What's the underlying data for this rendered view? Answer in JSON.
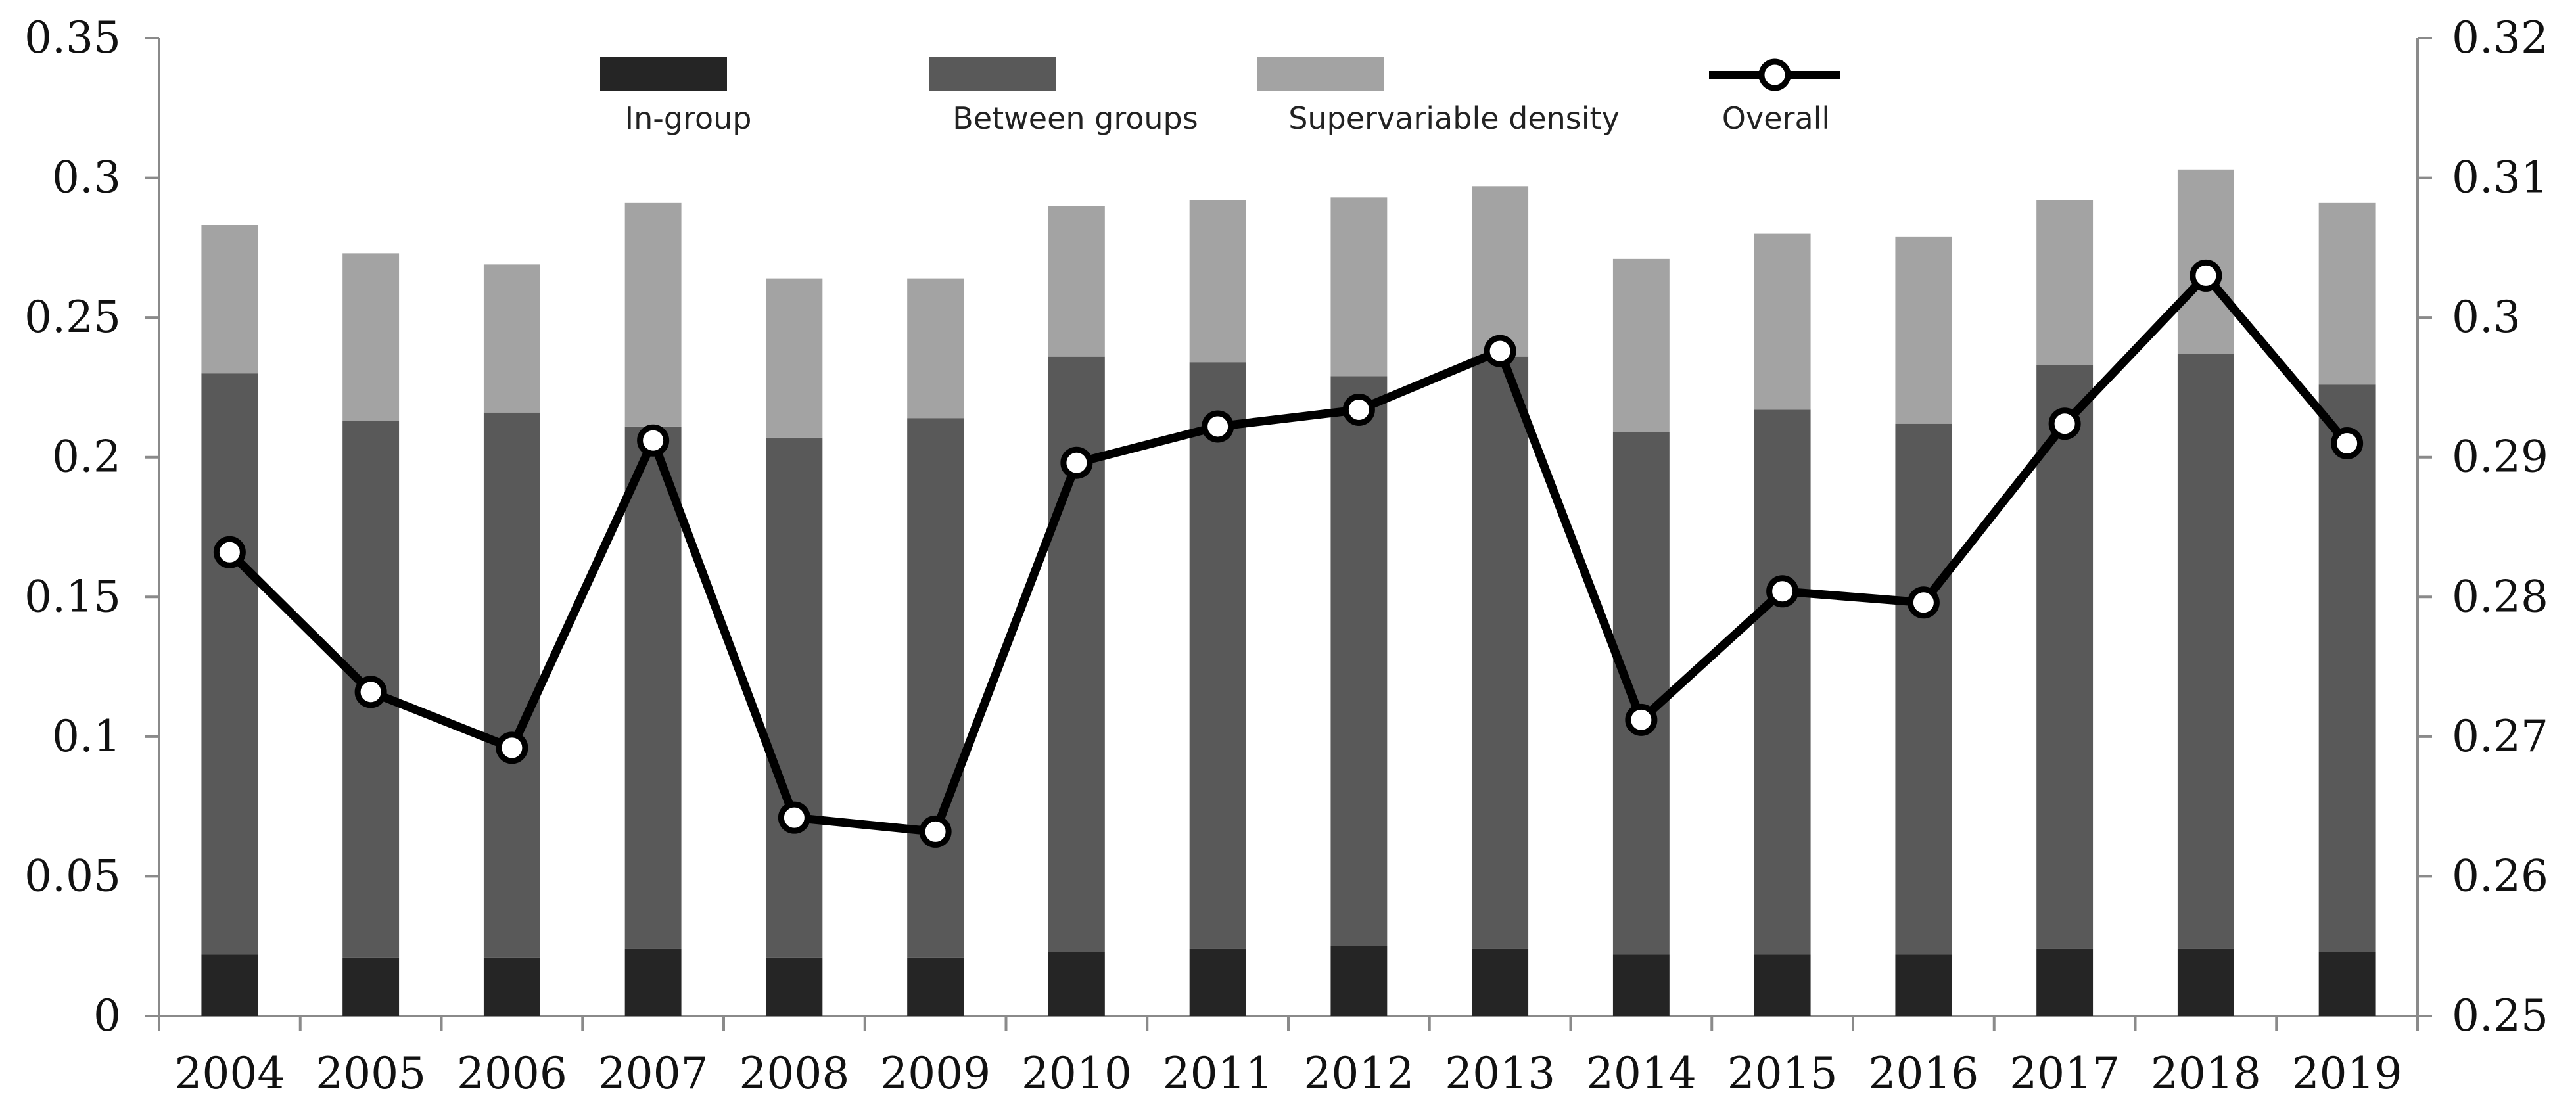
{
  "chart_data": {
    "type": "bar",
    "stacked": true,
    "title": "",
    "xlabel": "",
    "ylabel": "",
    "ylabel_right": "",
    "categories": [
      "2004",
      "2005",
      "2006",
      "2007",
      "2008",
      "2009",
      "2010",
      "2011",
      "2012",
      "2013",
      "2014",
      "2015",
      "2016",
      "2017",
      "2018",
      "2019"
    ],
    "series": [
      {
        "name": "In-group",
        "axis": "left",
        "kind": "bar",
        "color": "#252525",
        "values": [
          0.022,
          0.021,
          0.021,
          0.024,
          0.021,
          0.021,
          0.023,
          0.024,
          0.025,
          0.024,
          0.022,
          0.022,
          0.022,
          0.024,
          0.024,
          0.023
        ]
      },
      {
        "name": "Between groups",
        "axis": "left",
        "kind": "bar",
        "color": "#595959",
        "values": [
          0.208,
          0.192,
          0.195,
          0.187,
          0.186,
          0.193,
          0.213,
          0.21,
          0.204,
          0.212,
          0.187,
          0.195,
          0.19,
          0.209,
          0.213,
          0.203
        ]
      },
      {
        "name": "Supervariable density",
        "axis": "left",
        "kind": "bar",
        "color": "#a3a3a3",
        "values": [
          0.053,
          0.06,
          0.053,
          0.08,
          0.057,
          0.05,
          0.054,
          0.058,
          0.064,
          0.061,
          0.062,
          0.063,
          0.067,
          0.059,
          0.066,
          0.065
        ]
      },
      {
        "name": "Overall",
        "axis": "right",
        "kind": "line",
        "color": "#000000",
        "values": [
          0.2832,
          0.2732,
          0.2692,
          0.2912,
          0.2642,
          0.2632,
          0.2896,
          0.2922,
          0.2934,
          0.2976,
          0.2712,
          0.2804,
          0.2796,
          0.2924,
          0.303,
          0.291
        ]
      }
    ],
    "left_axis": {
      "min": 0,
      "max": 0.35,
      "ticks": [
        "0.35",
        "0.3",
        "0.25",
        "0.2",
        "0.15",
        "0.1",
        "0.05",
        "0"
      ],
      "tick_values": [
        0.35,
        0.3,
        0.25,
        0.2,
        0.15,
        0.1,
        0.05,
        0
      ]
    },
    "right_axis": {
      "min": 0.25,
      "max": 0.32,
      "ticks": [
        "0.32",
        "0.31",
        "0.3",
        "0.29",
        "0.28",
        "0.27",
        "0.26",
        "0.25"
      ],
      "tick_values": [
        0.32,
        0.31,
        0.3,
        0.29,
        0.28,
        0.27,
        0.26,
        0.25
      ]
    },
    "legend_position": "top-center",
    "grid": false
  }
}
